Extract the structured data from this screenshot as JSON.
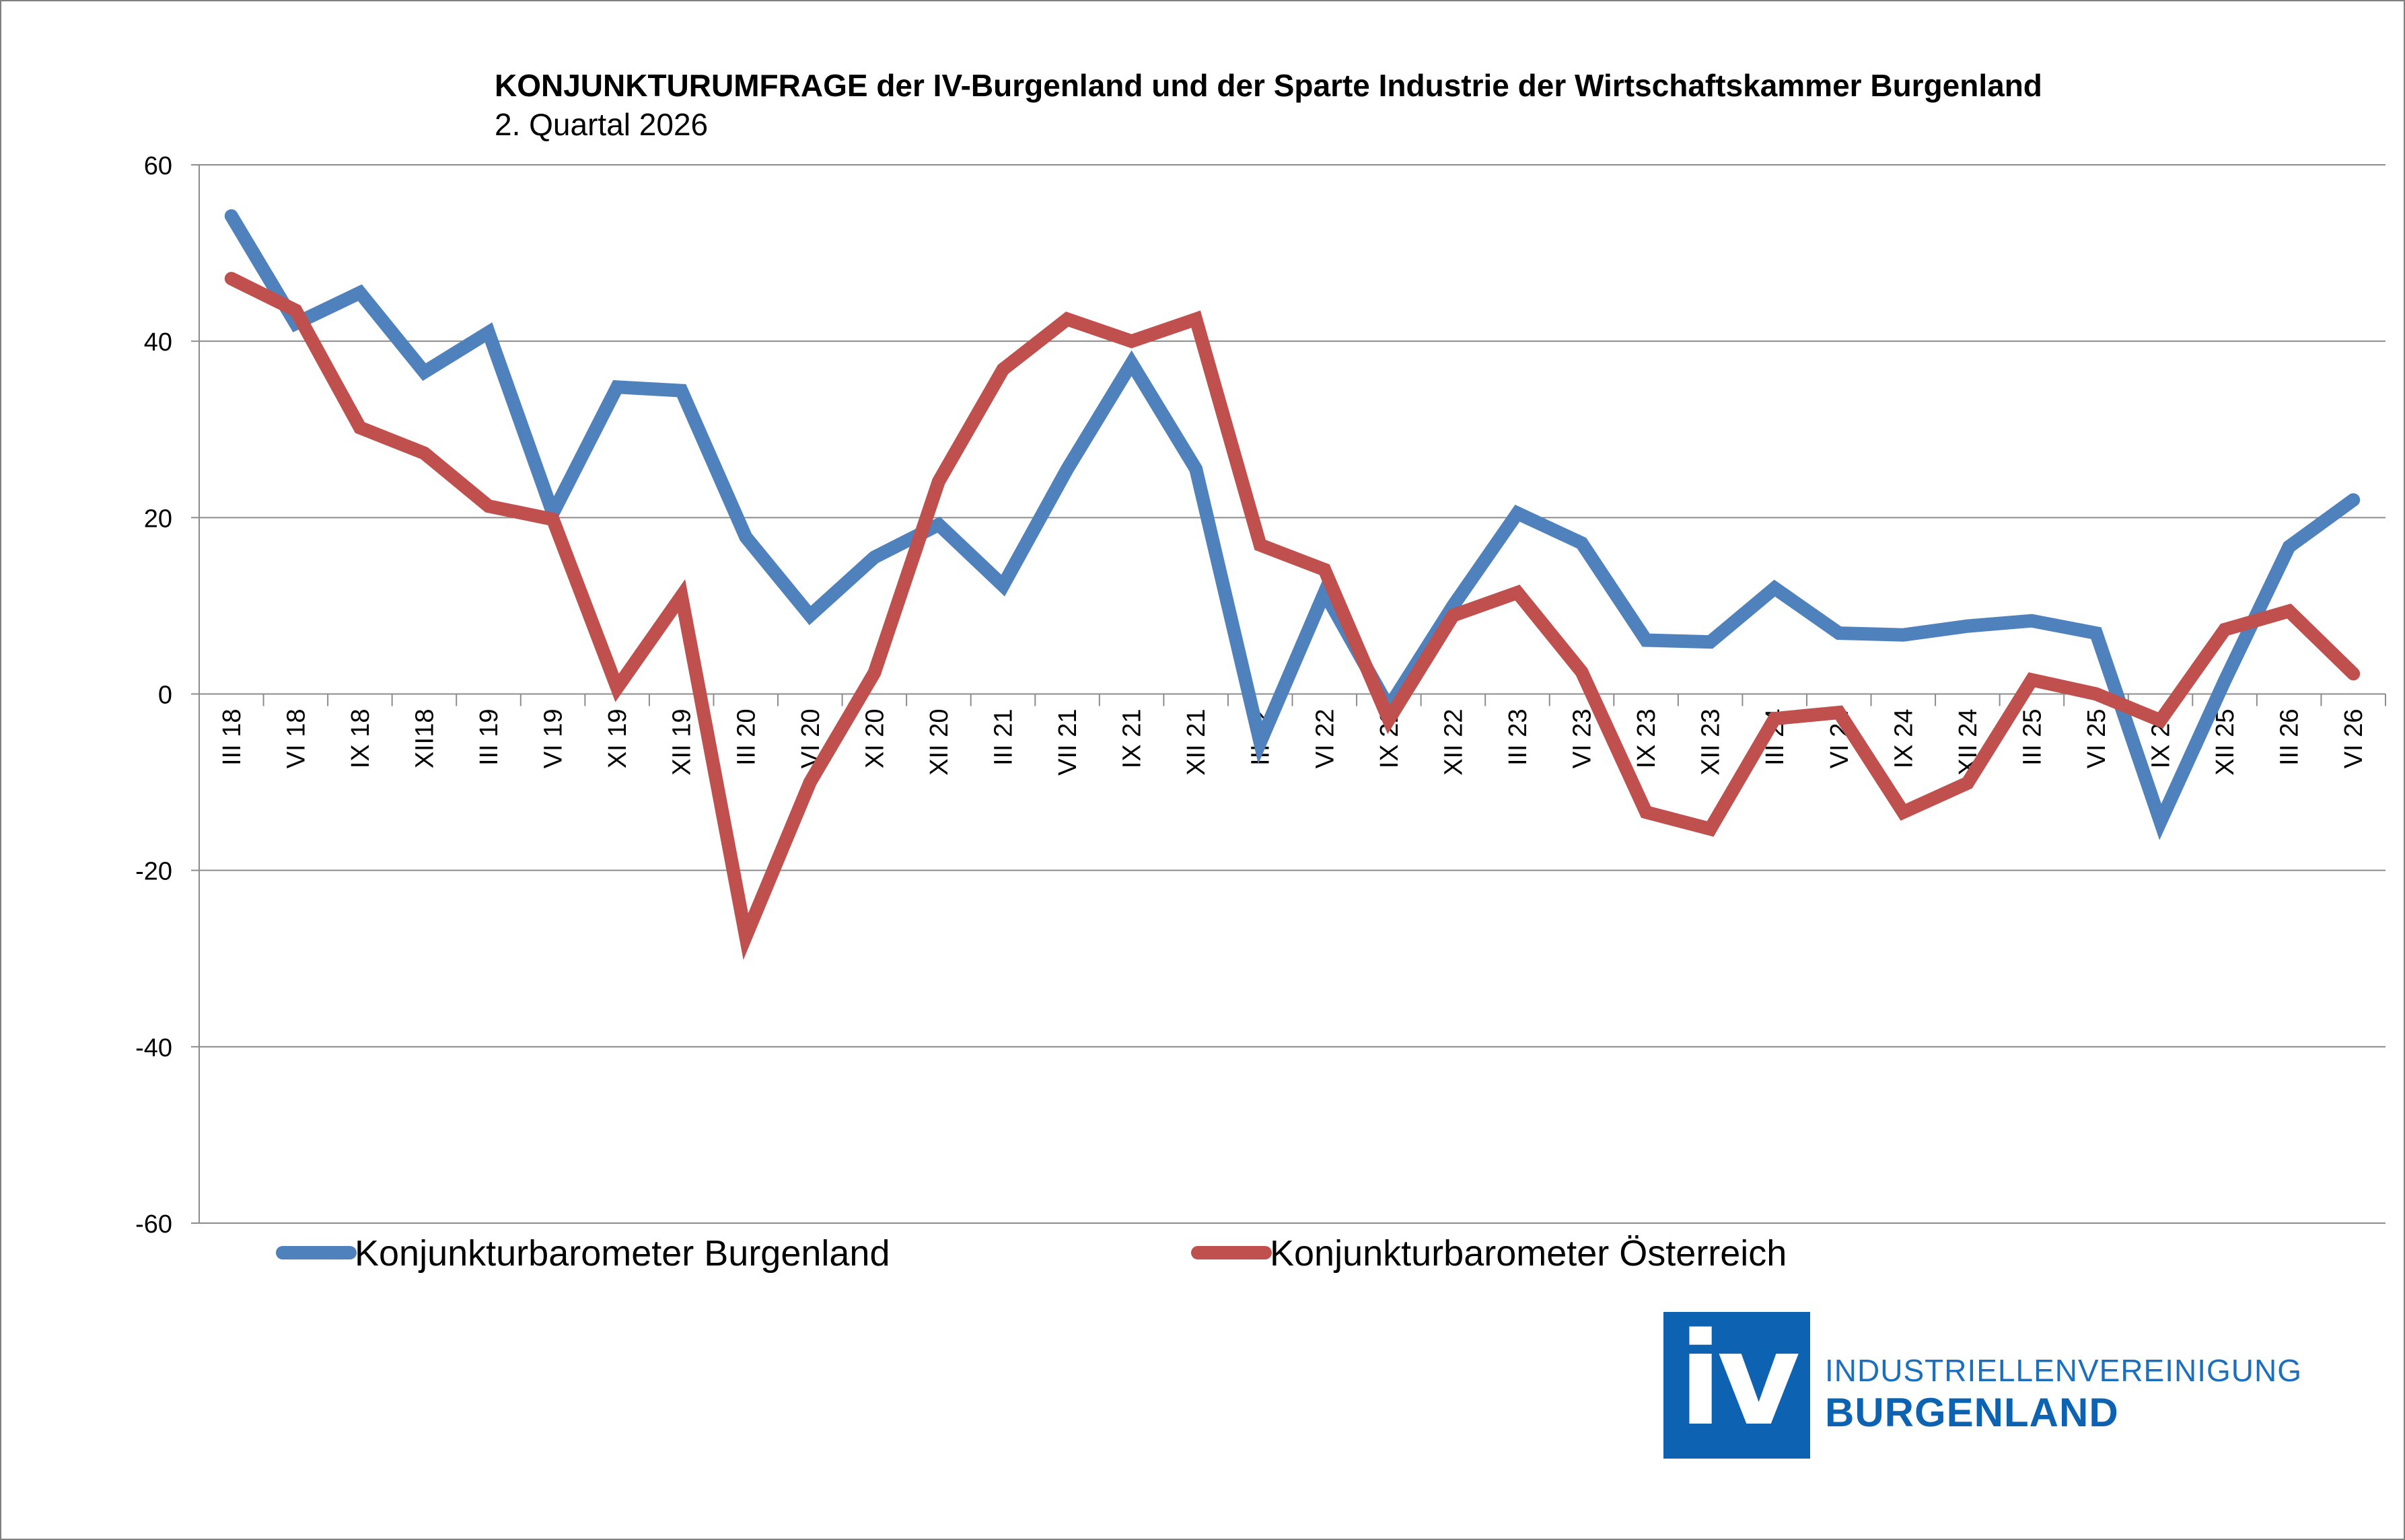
{
  "chart_data": {
    "type": "line",
    "title": "KONJUNKTURUMFRAGE der IV-Burgenland und der Sparte Industrie der Wirtschaftskammer Burgenland",
    "subtitle": "2. Quartal 2026",
    "categories": [
      "III 18",
      "VI 18",
      "IX 18",
      "XII18",
      "III 19",
      "VI 19",
      "XI 19",
      "XII 19",
      "III 20",
      "VI 20",
      "XI 20",
      "XII 20",
      "III 21",
      "VII 21",
      "IX 21",
      "XII 21",
      "III 22",
      "VI 22",
      "IX 22",
      "XII 22",
      "III 23",
      "VI 23",
      "IX 23",
      "XII 23",
      "III 24",
      "VI 24",
      "IX 24",
      "XII 24",
      "III 25",
      "VI 25",
      "IX 25",
      "XII 25",
      "III 26",
      "VI 26"
    ],
    "ylim": [
      -60,
      60
    ],
    "yticks": [
      60,
      40,
      20,
      0,
      -20,
      -40,
      -60
    ],
    "grid": true,
    "legend_position": "bottom",
    "series": [
      {
        "name": "Konjunkturbarometer Burgenland",
        "color": "#4f81bd",
        "values": [
          54.2,
          42.0,
          45.5,
          36.5,
          41.0,
          20.5,
          34.8,
          34.4,
          17.8,
          8.9,
          15.5,
          19.2,
          12.3,
          25.5,
          37.5,
          25.5,
          -5.5,
          11.5,
          -1.5,
          10.0,
          20.5,
          17.1,
          6.1,
          5.9,
          12.0,
          6.9,
          6.7,
          7.7,
          8.3,
          6.9,
          -14.5,
          1.5,
          16.7,
          22.0
        ]
      },
      {
        "name": "Konjunkturbarometer Österreich",
        "color": "#c0504d",
        "values": [
          47.1,
          43.5,
          30.2,
          27.3,
          21.3,
          19.8,
          0.7,
          11.1,
          -27.5,
          -10.0,
          2.4,
          24.1,
          36.8,
          42.5,
          40.0,
          42.5,
          16.9,
          14.1,
          -2.9,
          8.9,
          11.5,
          2.5,
          -13.4,
          -15.3,
          -2.8,
          -2.1,
          -13.4,
          -10.1,
          1.6,
          0.0,
          -3.0,
          7.3,
          9.4,
          2.3
        ]
      }
    ]
  },
  "logo": {
    "mark": "iv",
    "line1": "INDUSTRIELLENVEREINIGUNG",
    "line2": "BURGENLAND"
  }
}
